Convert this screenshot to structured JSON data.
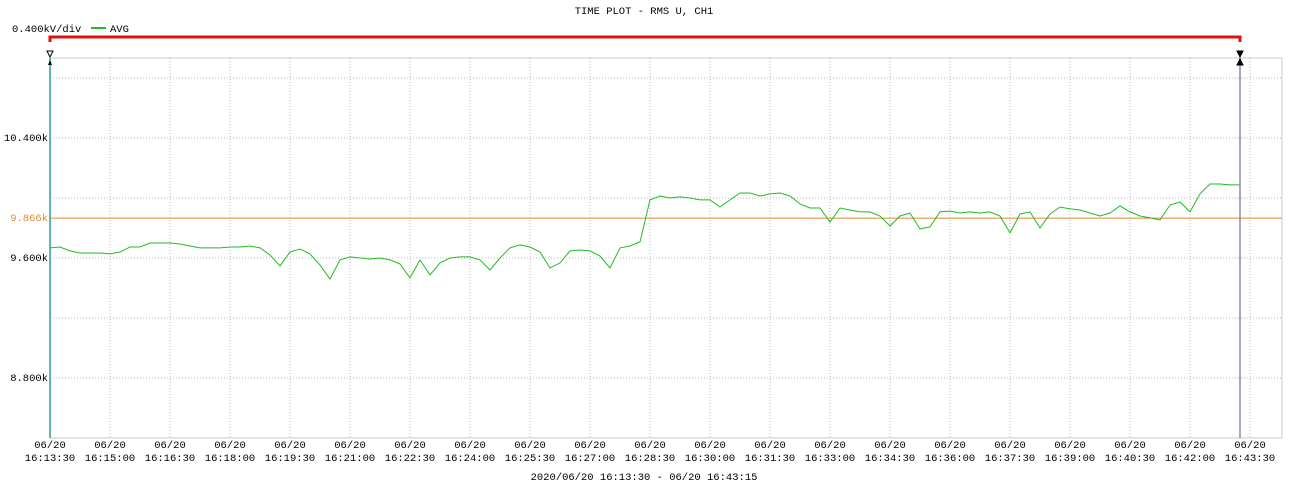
{
  "chart_data": {
    "type": "line",
    "title": "TIME PLOT - RMS  U, CH1",
    "scale_label": "0.400kV/div",
    "footer": "2020/06/20 16:13:30 - 06/20 16:43:15",
    "x": [
      "16:13:30",
      "16:13:45",
      "16:14:00",
      "16:14:15",
      "16:14:30",
      "16:14:45",
      "16:15:00",
      "16:15:15",
      "16:15:30",
      "16:15:45",
      "16:16:00",
      "16:16:15",
      "16:16:30",
      "16:16:45",
      "16:17:00",
      "16:17:15",
      "16:17:30",
      "16:17:45",
      "16:18:00",
      "16:18:15",
      "16:18:30",
      "16:18:45",
      "16:19:00",
      "16:19:15",
      "16:19:30",
      "16:19:45",
      "16:20:00",
      "16:20:15",
      "16:20:30",
      "16:20:45",
      "16:21:00",
      "16:21:15",
      "16:21:30",
      "16:21:45",
      "16:22:00",
      "16:22:15",
      "16:22:30",
      "16:22:45",
      "16:23:00",
      "16:23:15",
      "16:23:30",
      "16:23:45",
      "16:24:00",
      "16:24:15",
      "16:24:30",
      "16:24:45",
      "16:25:00",
      "16:25:15",
      "16:25:30",
      "16:25:45",
      "16:26:00",
      "16:26:15",
      "16:26:30",
      "16:26:45",
      "16:27:00",
      "16:27:15",
      "16:27:30",
      "16:27:45",
      "16:28:00",
      "16:28:15",
      "16:28:30",
      "16:28:45",
      "16:29:00",
      "16:29:15",
      "16:29:30",
      "16:29:45",
      "16:30:00",
      "16:30:15",
      "16:30:30",
      "16:30:45",
      "16:31:00",
      "16:31:15",
      "16:31:30",
      "16:31:45",
      "16:32:00",
      "16:32:15",
      "16:32:30",
      "16:32:45",
      "16:33:00",
      "16:33:15",
      "16:33:30",
      "16:33:45",
      "16:34:00",
      "16:34:15",
      "16:34:30",
      "16:34:45",
      "16:35:00",
      "16:35:15",
      "16:35:30",
      "16:35:45",
      "16:36:00",
      "16:36:15",
      "16:36:30",
      "16:36:45",
      "16:37:00",
      "16:37:15",
      "16:37:30",
      "16:37:45",
      "16:38:00",
      "16:38:15",
      "16:38:30",
      "16:38:45",
      "16:39:00",
      "16:39:15",
      "16:39:30",
      "16:39:45",
      "16:40:00",
      "16:40:15",
      "16:40:30",
      "16:40:45",
      "16:41:00",
      "16:41:15",
      "16:41:30",
      "16:41:45",
      "16:42:00",
      "16:42:15",
      "16:42:30",
      "16:42:45",
      "16:43:00",
      "16:43:15"
    ],
    "series": [
      {
        "name": "AVG",
        "color": "#22bb22",
        "values": [
          9.667,
          9.673,
          9.647,
          9.633,
          9.633,
          9.633,
          9.627,
          9.64,
          9.673,
          9.673,
          9.7,
          9.7,
          9.7,
          9.693,
          9.68,
          9.667,
          9.667,
          9.667,
          9.673,
          9.673,
          9.68,
          9.667,
          9.62,
          9.547,
          9.64,
          9.66,
          9.627,
          9.553,
          9.46,
          9.587,
          9.607,
          9.6,
          9.593,
          9.6,
          9.587,
          9.56,
          9.467,
          9.587,
          9.487,
          9.567,
          9.6,
          9.607,
          9.607,
          9.587,
          9.52,
          9.6,
          9.667,
          9.687,
          9.673,
          9.64,
          9.533,
          9.567,
          9.647,
          9.653,
          9.647,
          9.613,
          9.533,
          9.667,
          9.68,
          9.707,
          9.987,
          10.013,
          10.0,
          10.007,
          10.0,
          9.987,
          9.987,
          9.94,
          9.987,
          10.033,
          10.033,
          10.013,
          10.027,
          10.033,
          10.013,
          9.96,
          9.933,
          9.933,
          9.84,
          9.933,
          9.92,
          9.907,
          9.907,
          9.88,
          9.813,
          9.88,
          9.9,
          9.793,
          9.807,
          9.907,
          9.913,
          9.9,
          9.907,
          9.9,
          9.907,
          9.88,
          9.767,
          9.893,
          9.907,
          9.8,
          9.893,
          9.94,
          9.927,
          9.92,
          9.9,
          9.88,
          9.9,
          9.947,
          9.907,
          9.88,
          9.867,
          9.853,
          9.953,
          9.973,
          9.907,
          10.027,
          10.093,
          10.093,
          10.087,
          10.087
        ]
      }
    ],
    "reference_line": {
      "value": 9.866,
      "label": "9.866k",
      "color": "#e08a2c"
    },
    "ylim": [
      8.4,
      10.9333
    ],
    "yticks": [
      {
        "value": 10.4,
        "label": "10.400k"
      },
      {
        "value": 9.6,
        "label": "9.600k"
      },
      {
        "value": 8.8,
        "label": "8.800k"
      }
    ],
    "y_minor_ticks": [
      10.8,
      10.0,
      9.2
    ],
    "xlim": [
      "16:13:30",
      "16:44:18"
    ],
    "xticks": [
      {
        "value": "16:13:30",
        "label": [
          "06/20",
          "16:13:30"
        ]
      },
      {
        "value": "16:15:00",
        "label": [
          "06/20",
          "16:15:00"
        ]
      },
      {
        "value": "16:16:30",
        "label": [
          "06/20",
          "16:16:30"
        ]
      },
      {
        "value": "16:18:00",
        "label": [
          "06/20",
          "16:18:00"
        ]
      },
      {
        "value": "16:19:30",
        "label": [
          "06/20",
          "16:19:30"
        ]
      },
      {
        "value": "16:21:00",
        "label": [
          "06/20",
          "16:21:00"
        ]
      },
      {
        "value": "16:22:30",
        "label": [
          "06/20",
          "16:22:30"
        ]
      },
      {
        "value": "16:24:00",
        "label": [
          "06/20",
          "16:24:00"
        ]
      },
      {
        "value": "16:25:30",
        "label": [
          "06/20",
          "16:25:30"
        ]
      },
      {
        "value": "16:27:00",
        "label": [
          "06/20",
          "16:27:00"
        ]
      },
      {
        "value": "16:28:30",
        "label": [
          "06/20",
          "16:28:30"
        ]
      },
      {
        "value": "16:30:00",
        "label": [
          "06/20",
          "16:30:00"
        ]
      },
      {
        "value": "16:31:30",
        "label": [
          "06/20",
          "16:31:30"
        ]
      },
      {
        "value": "16:33:00",
        "label": [
          "06/20",
          "16:33:00"
        ]
      },
      {
        "value": "16:34:30",
        "label": [
          "06/20",
          "16:34:30"
        ]
      },
      {
        "value": "16:36:00",
        "label": [
          "06/20",
          "16:36:00"
        ]
      },
      {
        "value": "16:37:30",
        "label": [
          "06/20",
          "16:37:30"
        ]
      },
      {
        "value": "16:39:00",
        "label": [
          "06/20",
          "16:39:00"
        ]
      },
      {
        "value": "16:40:30",
        "label": [
          "06/20",
          "16:40:30"
        ]
      },
      {
        "value": "16:42:00",
        "label": [
          "06/20",
          "16:42:00"
        ]
      },
      {
        "value": "16:43:30",
        "label": [
          "06/20",
          "16:43:30"
        ]
      }
    ],
    "grid": true
  }
}
